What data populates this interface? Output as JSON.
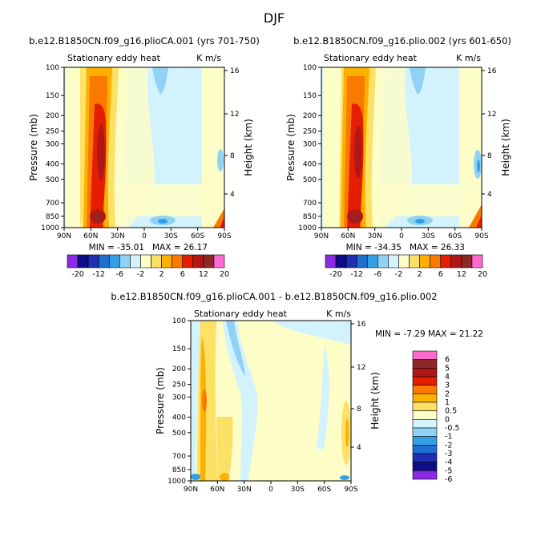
{
  "figure_title": "DJF",
  "chart_data": [
    {
      "type": "heatmap",
      "title": "b.e12.B1850CN.f09_g16.plioCA.001 (yrs 701-750)",
      "subtitle_left": "Stationary eddy heat",
      "units": "K m/s",
      "ylabel": "Pressure (mb)",
      "ylabel_right": "Height (km)",
      "x_ticks": [
        "90N",
        "60N",
        "30N",
        "0",
        "30S",
        "60S",
        "90S"
      ],
      "y_ticks": [
        "100",
        "150",
        "200",
        "250",
        "300",
        "400",
        "500",
        "700",
        "850",
        "1000"
      ],
      "right_ticks": [
        "16",
        "12",
        "8",
        "4"
      ],
      "min_label": "MIN = -35.01",
      "max_label": "MAX = 26.17",
      "colorbar_labels": [
        "-20",
        "-12",
        "-6",
        "-2",
        "2",
        "6",
        "12",
        "20"
      ]
    },
    {
      "type": "heatmap",
      "title": "b.e12.B1850CN.f09_g16.plio.002 (yrs 601-650)",
      "subtitle_left": "Stationary eddy heat",
      "units": "K m/s",
      "ylabel": "Pressure (mb)",
      "ylabel_right": "Height (km)",
      "x_ticks": [
        "90N",
        "60N",
        "30N",
        "0",
        "30S",
        "60S",
        "90S"
      ],
      "y_ticks": [
        "100",
        "150",
        "200",
        "250",
        "300",
        "400",
        "500",
        "700",
        "850",
        "1000"
      ],
      "right_ticks": [
        "16",
        "12",
        "8",
        "4"
      ],
      "min_label": "MIN = -34.35",
      "max_label": "MAX = 26.33",
      "colorbar_labels": [
        "-20",
        "-12",
        "-6",
        "-2",
        "2",
        "6",
        "12",
        "20"
      ]
    },
    {
      "type": "heatmap",
      "title": "b.e12.B1850CN.f09_g16.plioCA.001 - b.e12.B1850CN.f09_g16.plio.002",
      "subtitle_left": "Stationary eddy heat",
      "units": "K m/s",
      "ylabel": "Pressure (mb)",
      "ylabel_right": "Height (km)",
      "x_ticks": [
        "90N",
        "60N",
        "30N",
        "0",
        "30S",
        "60S",
        "90S"
      ],
      "y_ticks": [
        "100",
        "150",
        "200",
        "250",
        "300",
        "400",
        "500",
        "700",
        "850",
        "1000"
      ],
      "right_ticks": [
        "16",
        "12",
        "8",
        "4"
      ],
      "minmax_label": "MIN = -7.29  MAX = 21.22",
      "colorbar_labels": [
        "6",
        "5",
        "4",
        "3",
        "2",
        "1",
        "0.5",
        "0",
        "-0.5",
        "-1",
        "-2",
        "-3",
        "-4",
        "-5",
        "-6"
      ]
    }
  ],
  "colors": {
    "scale12": [
      "#8a2be2",
      "#0d0d8c",
      "#1e2fb4",
      "#1f6fd0",
      "#33a0e6",
      "#8fd2f5",
      "#d2f2fd",
      "#fdfdc8",
      "#fde066",
      "#fcb000",
      "#fa7a00",
      "#e61e00",
      "#b01818",
      "#8c2828",
      "#ff6ad0"
    ],
    "diff": [
      "#ff6ad0",
      "#8c2828",
      "#b01818",
      "#e61e00",
      "#fa7a00",
      "#fcb000",
      "#fde066",
      "#fdfdc8",
      "#d2f2fd",
      "#8fd2f5",
      "#33a0e6",
      "#1f6fd0",
      "#1e2fb4",
      "#0d0d8c",
      "#8a2be2"
    ]
  }
}
